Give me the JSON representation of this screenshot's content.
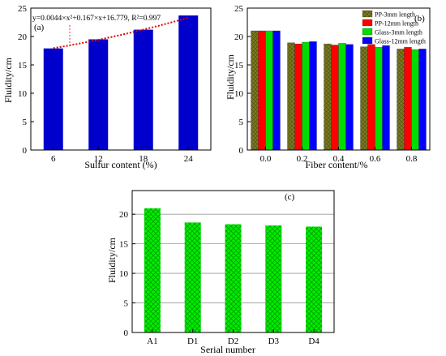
{
  "colors": {
    "axis": "#000000",
    "bar_a": "#0000cc",
    "fit_line": "#e00000",
    "pp3": "#6b6b1a",
    "pp12": "#ff0000",
    "glass3": "#00dd00",
    "glass12": "#0000ff",
    "bar_c": "#00ee00",
    "hatch_c": "#00aa00"
  },
  "chart_data": [
    {
      "type": "bar",
      "panel_label": "(a)",
      "categories": [
        "6",
        "12",
        "18",
        "24"
      ],
      "values": [
        17.9,
        19.5,
        21.2,
        23.7
      ],
      "xlabel": "Sulfur content (%)",
      "ylabel": "Fluidity/cm",
      "ylim": [
        0,
        25
      ],
      "yticks": [
        "0",
        "5",
        "10",
        "15",
        "20",
        "25"
      ],
      "annotation": "y=0.0044×x²+0.167×x+16.779, R²=0.997",
      "fit": {
        "a": 0.0044,
        "b": 0.167,
        "c": 16.779
      },
      "grid": false
    },
    {
      "type": "bar",
      "panel_label": "(b)",
      "categories": [
        "0.0",
        "0.2",
        "0.4",
        "0.6",
        "0.8"
      ],
      "series": [
        {
          "name": "PP-3mm length",
          "values": [
            21.0,
            18.9,
            18.7,
            18.2,
            17.8
          ]
        },
        {
          "name": "PP-12mm length",
          "values": [
            21.0,
            18.7,
            18.5,
            18.6,
            18.1
          ]
        },
        {
          "name": "Glass-3mm length",
          "values": [
            21.0,
            19.0,
            18.8,
            18.1,
            17.7
          ]
        },
        {
          "name": "Glass-12mm length",
          "values": [
            21.0,
            19.1,
            18.6,
            18.4,
            17.8
          ]
        }
      ],
      "xlabel": "Fiber content/%",
      "ylabel": "Fluidity/cm",
      "ylim": [
        0,
        25
      ],
      "yticks": [
        "0",
        "5",
        "10",
        "15",
        "20",
        "25"
      ],
      "legend": "top-right",
      "grid": false
    },
    {
      "type": "bar",
      "panel_label": "(c)",
      "categories": [
        "A1",
        "D1",
        "D2",
        "D3",
        "D4"
      ],
      "values": [
        21.0,
        18.6,
        18.3,
        18.1,
        17.9
      ],
      "xlabel": "Serial number",
      "ylabel": "Fluidity/cm",
      "ylim": [
        0,
        24
      ],
      "yticks": [
        "0",
        "5",
        "10",
        "15",
        "20"
      ],
      "grid": true
    }
  ]
}
